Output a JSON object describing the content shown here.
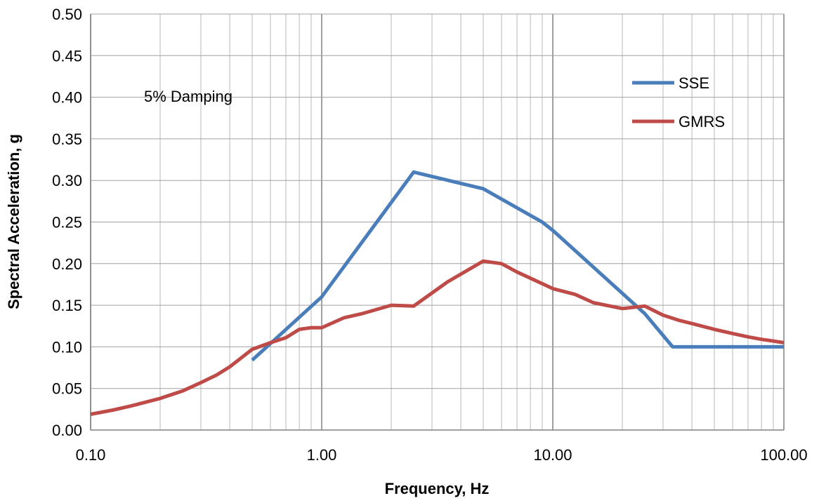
{
  "chart_data": {
    "type": "line",
    "title": "",
    "xlabel": "Frequency, Hz",
    "ylabel": "Spectral Acceleration, g",
    "xscale": "log",
    "xlim": [
      0.1,
      100
    ],
    "ylim": [
      0,
      0.5
    ],
    "x_ticks": [
      0.1,
      1,
      10,
      100
    ],
    "x_tick_labels": [
      "0.10",
      "1.00",
      "10.00",
      "100.00"
    ],
    "y_ticks": [
      0,
      0.05,
      0.1,
      0.15,
      0.2,
      0.25,
      0.3,
      0.35,
      0.4,
      0.45,
      0.5
    ],
    "y_tick_labels": [
      "0.00",
      "0.05",
      "0.10",
      "0.15",
      "0.20",
      "0.25",
      "0.30",
      "0.35",
      "0.40",
      "0.45",
      "0.50"
    ],
    "grid": true,
    "legend_position": "top-right",
    "annotation": "5% Damping",
    "series": [
      {
        "name": "SSE",
        "color": "#4a7ebb",
        "x": [
          0.5,
          1.0,
          2.5,
          5.0,
          9.0,
          10.0,
          25.0,
          33.0,
          100.0
        ],
        "y": [
          0.084,
          0.16,
          0.31,
          0.29,
          0.25,
          0.24,
          0.14,
          0.1,
          0.1
        ]
      },
      {
        "name": "GMRS",
        "color": "#be4b48",
        "x": [
          0.1,
          0.125,
          0.15,
          0.2,
          0.25,
          0.3,
          0.35,
          0.4,
          0.5,
          0.6,
          0.7,
          0.8,
          0.9,
          1.0,
          1.25,
          1.5,
          2.0,
          2.5,
          3.5,
          5.0,
          6.0,
          7.0,
          9.0,
          10.0,
          12.5,
          15.0,
          20.0,
          25.0,
          30.0,
          35.0,
          40.0,
          50.0,
          60.0,
          70.0,
          80.0,
          90.0,
          100.0
        ],
        "y": [
          0.019,
          0.024,
          0.029,
          0.038,
          0.047,
          0.057,
          0.066,
          0.076,
          0.097,
          0.105,
          0.111,
          0.121,
          0.123,
          0.123,
          0.135,
          0.14,
          0.15,
          0.149,
          0.178,
          0.203,
          0.2,
          0.19,
          0.176,
          0.17,
          0.163,
          0.153,
          0.146,
          0.149,
          0.138,
          0.132,
          0.128,
          0.121,
          0.116,
          0.112,
          0.109,
          0.107,
          0.105
        ]
      }
    ]
  }
}
